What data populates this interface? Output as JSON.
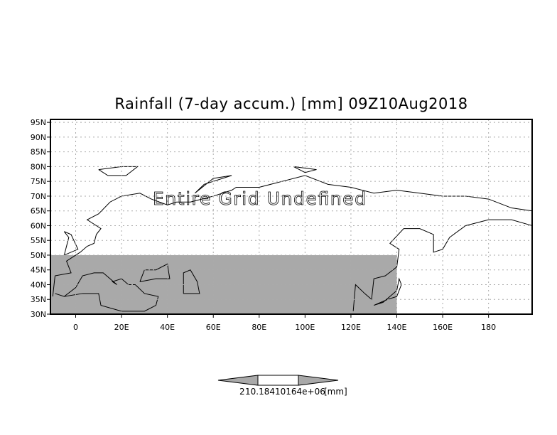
{
  "chart_data": {
    "type": "heatmap",
    "title": "Rainfall (7-day accum.) [mm] 09Z10Aug2018",
    "variable": "Rainfall (7-day accum.)",
    "units": "[mm]",
    "valid_time": "09Z10Aug2018",
    "lon_range": [
      -11,
      199
    ],
    "lat_range": [
      30,
      96
    ],
    "x_ticks": [
      "0",
      "20E",
      "40E",
      "60E",
      "80E",
      "100E",
      "120E",
      "140E",
      "160E",
      "180"
    ],
    "x_tick_values": [
      0,
      20,
      40,
      60,
      80,
      100,
      120,
      140,
      160,
      180
    ],
    "y_ticks": [
      "30N",
      "35N",
      "40N",
      "45N",
      "50N",
      "55N",
      "60N",
      "65N",
      "70N",
      "75N",
      "80N",
      "85N",
      "90N",
      "95N"
    ],
    "y_tick_values": [
      30,
      35,
      40,
      45,
      50,
      55,
      60,
      65,
      70,
      75,
      80,
      85,
      90,
      95
    ],
    "grid": true,
    "overlay_text": "Entire Grid Undefined",
    "shaded_region": {
      "lon": [
        -11,
        140
      ],
      "lat": [
        30,
        50
      ],
      "color": "#a9a9a9"
    },
    "colorbar": {
      "labels": [
        "2",
        "10.184",
        "10164e+06"
      ],
      "units": "[mm]",
      "colors": [
        "#a9a9a9",
        "#ffffff",
        "#a9a9a9"
      ]
    }
  }
}
